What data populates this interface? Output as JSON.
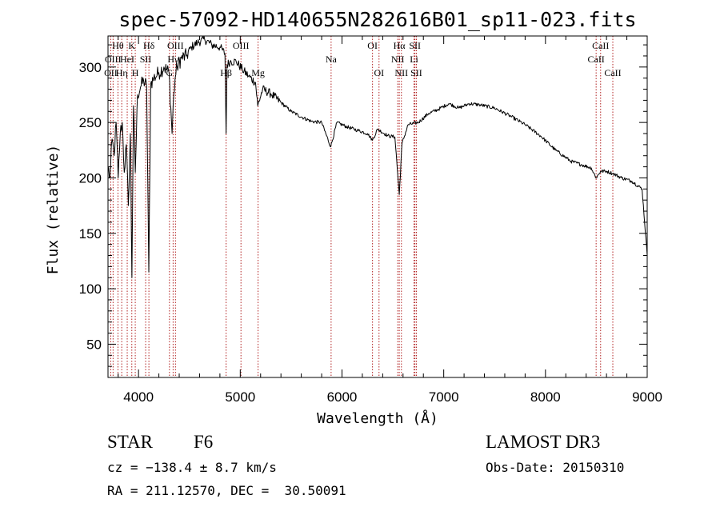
{
  "chart_data": {
    "type": "line",
    "title": "spec-57092-HD140655N282616B01_sp11-023.fits",
    "xlabel": "Wavelength (Å)",
    "ylabel": "Flux (relative)",
    "xlim": [
      3700,
      9000
    ],
    "ylim": [
      20,
      328
    ],
    "x_ticks": [
      4000,
      5000,
      6000,
      7000,
      8000,
      9000
    ],
    "y_ticks": [
      50,
      100,
      150,
      200,
      250,
      300
    ],
    "grid": false,
    "series": [
      {
        "name": "flux",
        "x": [
          3700,
          3720,
          3740,
          3760,
          3780,
          3800,
          3820,
          3840,
          3860,
          3880,
          3900,
          3920,
          3935,
          3950,
          3968,
          3990,
          4020,
          4050,
          4080,
          4101,
          4120,
          4150,
          4200,
          4250,
          4300,
          4330,
          4340,
          4360,
          4380,
          4420,
          4470,
          4520,
          4580,
          4650,
          4720,
          4800,
          4850,
          4861,
          4870,
          4900,
          4960,
          5020,
          5080,
          5150,
          5172,
          5220,
          5300,
          5400,
          5500,
          5600,
          5700,
          5800,
          5889,
          5950,
          6050,
          6150,
          6250,
          6300,
          6350,
          6450,
          6520,
          6563,
          6590,
          6650,
          6750,
          6850,
          6950,
          7050,
          7150,
          7250,
          7350,
          7500,
          7650,
          7800,
          7950,
          8100,
          8250,
          8350,
          8450,
          8498,
          8542,
          8600,
          8662,
          8750,
          8850,
          8950,
          9000
        ],
        "values": [
          210,
          200,
          235,
          220,
          250,
          200,
          240,
          250,
          205,
          230,
          175,
          240,
          110,
          265,
          205,
          275,
          282,
          288,
          282,
          115,
          285,
          290,
          295,
          300,
          295,
          240,
          265,
          290,
          300,
          308,
          310,
          318,
          322,
          325,
          320,
          318,
          312,
          240,
          302,
          305,
          305,
          298,
          292,
          286,
          265,
          280,
          276,
          268,
          260,
          255,
          251,
          250,
          228,
          250,
          246,
          243,
          240,
          234,
          244,
          238,
          237,
          185,
          231,
          248,
          250,
          258,
          262,
          267,
          263,
          267,
          266,
          263,
          256,
          248,
          238,
          225,
          215,
          212,
          209,
          200,
          206,
          206,
          204,
          200,
          197,
          190,
          130
        ]
      }
    ],
    "spectral_lines": [
      {
        "label": "OII",
        "wavelength": 3727,
        "row": 2
      },
      {
        "label": "Hθ",
        "wavelength": 3798,
        "row": 0
      },
      {
        "label": "OIII",
        "wavelength": 3750,
        "row": 1
      },
      {
        "label": "Hη",
        "wavelength": 3835,
        "row": 2
      },
      {
        "label": "HeI",
        "wavelength": 3889,
        "row": 1
      },
      {
        "label": "K",
        "wavelength": 3934,
        "row": 0
      },
      {
        "label": "SII",
        "wavelength": 4070,
        "row": 1
      },
      {
        "label": "H",
        "wavelength": 3968,
        "row": 2
      },
      {
        "label": "Hδ",
        "wavelength": 4102,
        "row": 0
      },
      {
        "label": "OIII",
        "wavelength": 4363,
        "row": 0
      },
      {
        "label": "Hγ",
        "wavelength": 4340,
        "row": 1
      },
      {
        "label": "G",
        "wavelength": 4304,
        "row": 2
      },
      {
        "label": "Hβ",
        "wavelength": 4861,
        "row": 2
      },
      {
        "label": "OIII",
        "wavelength": 5007,
        "row": 0
      },
      {
        "label": "Mg",
        "wavelength": 5175,
        "row": 2
      },
      {
        "label": "Na",
        "wavelength": 5893,
        "row": 1
      },
      {
        "label": "OI",
        "wavelength": 6300,
        "row": 0
      },
      {
        "label": "OI",
        "wavelength": 6364,
        "row": 2
      },
      {
        "label": "Hα",
        "wavelength": 6563,
        "row": 0
      },
      {
        "label": "NII",
        "wavelength": 6548,
        "row": 1
      },
      {
        "label": "NII",
        "wavelength": 6584,
        "row": 2
      },
      {
        "label": "SII",
        "wavelength": 6717,
        "row": 0
      },
      {
        "label": "Li",
        "wavelength": 6708,
        "row": 1
      },
      {
        "label": "SII",
        "wavelength": 6731,
        "row": 2
      },
      {
        "label": "CaII",
        "wavelength": 8542,
        "row": 0
      },
      {
        "label": "CaII",
        "wavelength": 8498,
        "row": 1
      },
      {
        "label": "CaII",
        "wavelength": 8662,
        "row": 2
      }
    ]
  },
  "footer": {
    "object_type": "STAR",
    "subclass": "F6",
    "survey": "LAMOST DR3",
    "cz": "cz = −138.4 ± 8.7 km/s",
    "obs_date": "Obs-Date: 20150310",
    "coords": "RA = 211.12570, DEC =  30.50091"
  }
}
